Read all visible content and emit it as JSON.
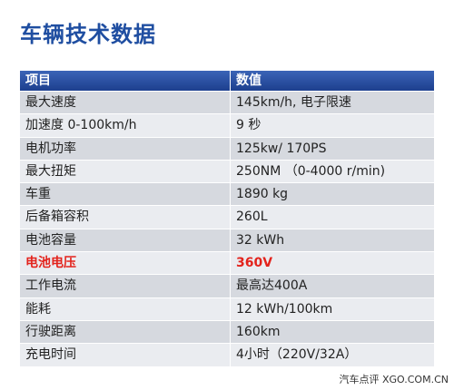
{
  "header": {
    "title": "车辆技术数据"
  },
  "table": {
    "columns": [
      "项目",
      "数值"
    ],
    "rows": [
      [
        "最大速度",
        "145km/h, 电子限速"
      ],
      [
        "加速度 0-100km/h",
        "9 秒"
      ],
      [
        "电机功率",
        "125kw/ 170PS"
      ],
      [
        "最大扭矩",
        "250NM （0-4000 r/min)"
      ],
      [
        "车重",
        "1890 kg"
      ],
      [
        "后备箱容积",
        "260L"
      ],
      [
        "电池容量",
        "32 kWh"
      ],
      [
        "电池电压",
        "360V"
      ],
      [
        "工作电流",
        "最高达400A"
      ],
      [
        "能耗",
        "12 kWh/100km"
      ],
      [
        "行驶距离",
        "160km"
      ],
      [
        "充电时间",
        "4小时（220V/32A）"
      ]
    ],
    "highlight_row": 7,
    "highlight_color": "#e3231c"
  },
  "watermark": "汽车点评 XGO.COM.CN"
}
